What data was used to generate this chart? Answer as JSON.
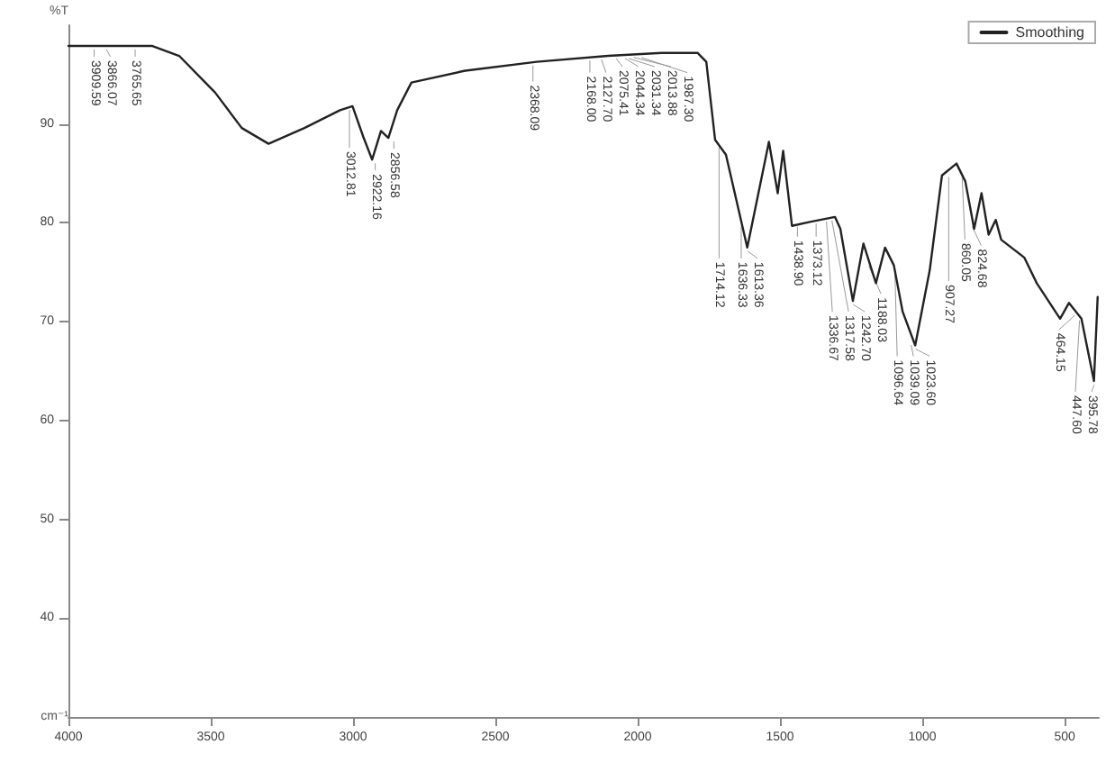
{
  "chart_data": {
    "type": "line",
    "xlabel": "cm⁻¹",
    "ylabel": "%T",
    "xlim": [
      4000,
      380
    ],
    "xticks": [
      4000,
      3500,
      3000,
      2500,
      2000,
      1500,
      1000,
      500
    ],
    "ylim": [
      30,
      100
    ],
    "yticks": [
      40,
      50,
      60,
      70,
      80,
      90
    ],
    "legend": "top right",
    "grid": false,
    "marker": "none",
    "line_style": "solid",
    "series": [
      {
        "name": "Smoothing",
        "color": "#222222",
        "x": [
          4000,
          3705,
          3611,
          3485,
          3391,
          3297,
          3171,
          3046,
          3002,
          2964,
          2933,
          2902,
          2876,
          2845,
          2795,
          2606,
          2355,
          2104,
          1916,
          1790,
          1759,
          1728,
          1690,
          1615,
          1539,
          1508,
          1489,
          1458,
          1395,
          1307,
          1288,
          1244,
          1207,
          1163,
          1131,
          1100,
          1069,
          1025,
          974,
          931,
          880,
          849,
          818,
          792,
          767,
          742,
          723,
          642,
          598,
          516,
          485,
          441,
          397,
          384
        ],
        "values": [
          97.9,
          97.9,
          96.9,
          93.2,
          89.6,
          88.0,
          89.6,
          91.4,
          91.8,
          88.7,
          86.4,
          89.3,
          88.6,
          91.4,
          94.2,
          95.4,
          96.3,
          96.9,
          97.2,
          97.2,
          96.3,
          88.4,
          86.9,
          77.5,
          88.2,
          83.0,
          87.3,
          79.7,
          80.1,
          80.6,
          79.4,
          72.1,
          77.9,
          73.9,
          77.5,
          75.7,
          71.0,
          67.6,
          75.2,
          84.8,
          86.0,
          84.2,
          79.4,
          83.0,
          78.8,
          80.3,
          78.3,
          76.5,
          73.9,
          70.3,
          71.9,
          70.3,
          64.0,
          72.5
        ]
      }
    ],
    "annotations": [
      {
        "text": "3909.59",
        "x": 3909.59,
        "y": 97.9
      },
      {
        "text": "3866.07",
        "x": 3866.07,
        "y": 97.9
      },
      {
        "text": "3765.65",
        "x": 3765.65,
        "y": 97.9
      },
      {
        "text": "3012.81",
        "x": 3012.81,
        "y": 91.8
      },
      {
        "text": "2922.16",
        "x": 2922.16,
        "y": 86.4
      },
      {
        "text": "2856.58",
        "x": 2856.58,
        "y": 88.6
      },
      {
        "text": "2368.09",
        "x": 2368.09,
        "y": 96.3
      },
      {
        "text": "2168.00",
        "x": 2168.0,
        "y": 96.8
      },
      {
        "text": "2127.70",
        "x": 2127.7,
        "y": 96.9
      },
      {
        "text": "2075.41",
        "x": 2075.41,
        "y": 97.0
      },
      {
        "text": "2044.34",
        "x": 2044.34,
        "y": 97.0
      },
      {
        "text": "2031.34",
        "x": 2031.34,
        "y": 97.0
      },
      {
        "text": "2013.88",
        "x": 2013.88,
        "y": 97.1
      },
      {
        "text": "1987.30",
        "x": 1987.3,
        "y": 97.1
      },
      {
        "text": "1714.12",
        "x": 1714.12,
        "y": 88.0
      },
      {
        "text": "1636.33",
        "x": 1636.33,
        "y": 80.0
      },
      {
        "text": "1613.36",
        "x": 1613.36,
        "y": 77.5
      },
      {
        "text": "1438.90",
        "x": 1438.9,
        "y": 80.0
      },
      {
        "text": "1373.12",
        "x": 1373.12,
        "y": 80.3
      },
      {
        "text": "1336.67",
        "x": 1336.67,
        "y": 80.5
      },
      {
        "text": "1317.58",
        "x": 1317.58,
        "y": 80.6
      },
      {
        "text": "1242.70",
        "x": 1242.7,
        "y": 72.1
      },
      {
        "text": "1188.03",
        "x": 1188.03,
        "y": 76.0
      },
      {
        "text": "1096.64",
        "x": 1096.64,
        "y": 75.7
      },
      {
        "text": "1039.09",
        "x": 1039.09,
        "y": 68.0
      },
      {
        "text": "1023.60",
        "x": 1023.6,
        "y": 67.6
      },
      {
        "text": "907.27",
        "x": 907.27,
        "y": 85.0
      },
      {
        "text": "860.05",
        "x": 860.05,
        "y": 85.0
      },
      {
        "text": "824.68",
        "x": 824.68,
        "y": 80.0
      },
      {
        "text": "464.15",
        "x": 464.15,
        "y": 71.0
      },
      {
        "text": "447.60",
        "x": 447.6,
        "y": 70.5
      },
      {
        "text": "395.78",
        "x": 395.78,
        "y": 64.0
      }
    ]
  }
}
